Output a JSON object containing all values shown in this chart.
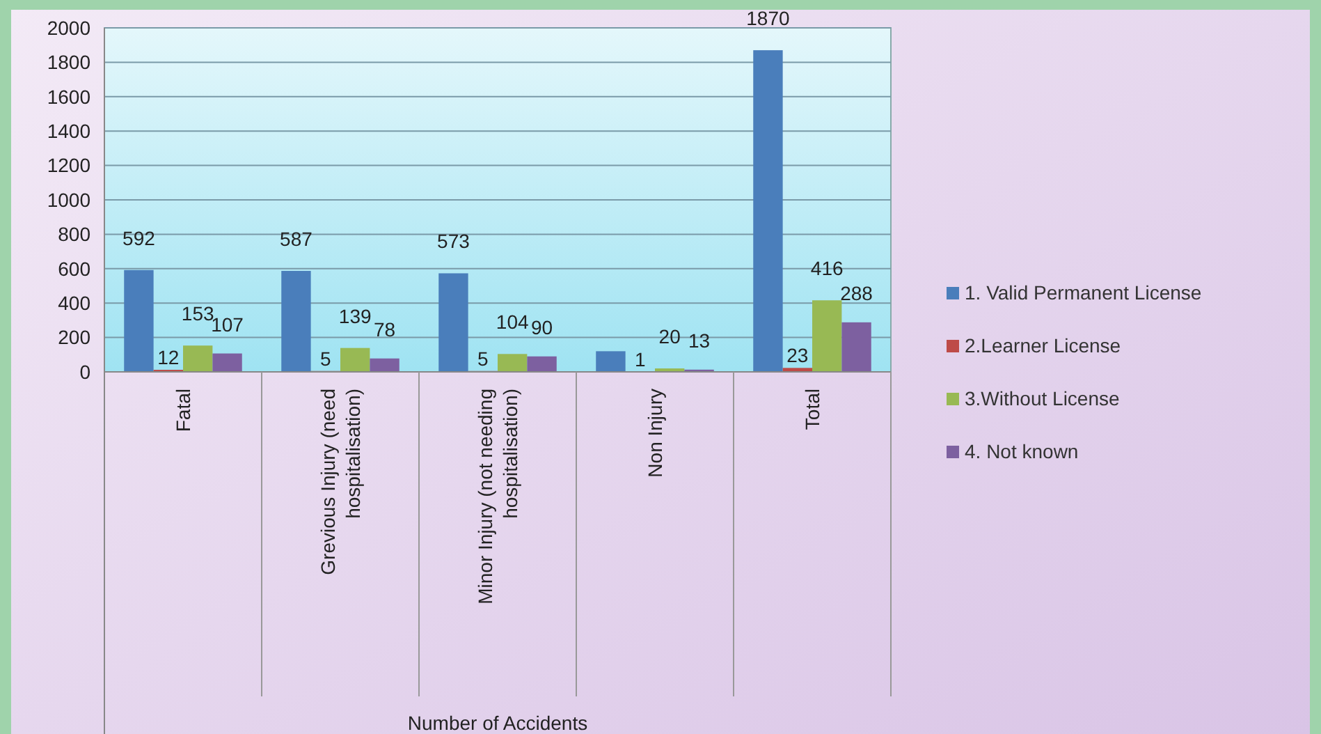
{
  "chart_data": {
    "type": "bar",
    "annotations": [
      "Number of Accidents"
    ],
    "categories": [
      "Fatal",
      "Grevious Injury (need hospitalisation)",
      "Minor Injury (not needing hospitalisation)",
      "Non Injury",
      "Total"
    ],
    "series": [
      {
        "name": "1. Valid Permanent License",
        "color": "#4a7ebb",
        "values": [
          592,
          587,
          573,
          120,
          1870
        ],
        "value_labels": [
          "592",
          "587",
          "573",
          null,
          "1870"
        ]
      },
      {
        "name": "2.Learner License",
        "color": "#be4b48",
        "values": [
          12,
          5,
          5,
          1,
          23
        ],
        "value_labels": [
          "12",
          "5",
          "5",
          "1",
          "23"
        ]
      },
      {
        "name": "3.Without  License",
        "color": "#98b954",
        "values": [
          153,
          139,
          104,
          20,
          416
        ],
        "value_labels": [
          "153",
          "139",
          "104",
          "20",
          "416"
        ]
      },
      {
        "name": "4. Not known",
        "color": "#7d60a0",
        "values": [
          107,
          78,
          90,
          13,
          288
        ],
        "value_labels": [
          "107",
          "78",
          "90",
          "13",
          "288"
        ]
      }
    ],
    "ylim": [
      0,
      2000
    ],
    "yticks": [
      0,
      200,
      400,
      600,
      800,
      1000,
      1200,
      1400,
      1600,
      1800,
      2000
    ],
    "grid": "y",
    "legend": "right"
  }
}
